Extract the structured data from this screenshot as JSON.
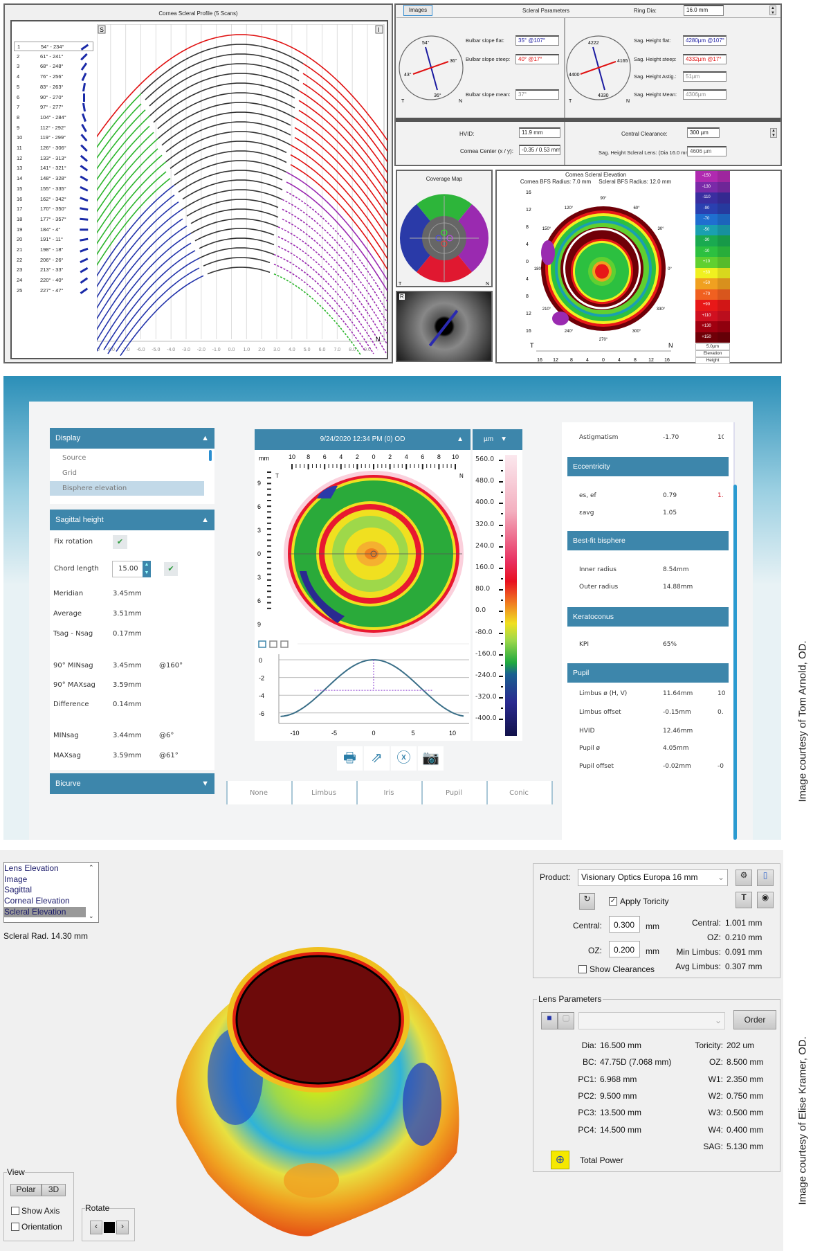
{
  "profile": {
    "title": "Cornea Scleral Profile (5 Scans)",
    "corner_left": "S",
    "corner_right": "I",
    "bottom_left": "T",
    "bottom_right": "N",
    "scans": [
      [
        "1",
        "54° - 234°"
      ],
      [
        "2",
        "61° - 241°"
      ],
      [
        "3",
        "68° - 248°"
      ],
      [
        "4",
        "76° - 256°"
      ],
      [
        "5",
        "83° - 263°"
      ],
      [
        "6",
        "90° - 270°"
      ],
      [
        "7",
        "97° - 277°"
      ],
      [
        "8",
        "104° - 284°"
      ],
      [
        "9",
        "112° - 292°"
      ],
      [
        "10",
        "119° - 299°"
      ],
      [
        "11",
        "126° - 306°"
      ],
      [
        "12",
        "133° - 313°"
      ],
      [
        "13",
        "141° - 321°"
      ],
      [
        "14",
        "148° - 328°"
      ],
      [
        "15",
        "155° - 335°"
      ],
      [
        "16",
        "162° - 342°"
      ],
      [
        "17",
        "170° - 350°"
      ],
      [
        "18",
        "177° - 357°"
      ],
      [
        "19",
        "184° - 4°"
      ],
      [
        "20",
        "191° - 11°"
      ],
      [
        "21",
        "198° - 18°"
      ],
      [
        "22",
        "206° - 26°"
      ],
      [
        "23",
        "213° - 33°"
      ],
      [
        "24",
        "220° - 40°"
      ],
      [
        "25",
        "227° - 47°"
      ]
    ],
    "x_ticks": [
      "-9.0",
      "-8.0",
      "-7.0",
      "-6.0",
      "-5.0",
      "-4.0",
      "-3.0",
      "-2.0",
      "-1.0",
      "0.0",
      "1.0",
      "2.0",
      "3.0",
      "4.0",
      "5.0",
      "6.0",
      "7.0",
      "8.0",
      "9.0"
    ]
  },
  "scleral": {
    "images_button": "Images",
    "title": "Scleral Parameters",
    "ring_dia_label": "Ring Dia:",
    "ring_dia_value": "16.0 mm",
    "left_compass": {
      "top": "54°",
      "right": "36°",
      "left": "43°",
      "bottom": "36°",
      "t": "T",
      "n": "N"
    },
    "right_compass": {
      "top": "4222",
      "right": "4165",
      "left": "4400",
      "bottom": "4330",
      "t": "T",
      "n": "N"
    },
    "bulbar": [
      {
        "label": "Bulbar slope flat:",
        "value": "35° @107°",
        "color": "#1a1aa0"
      },
      {
        "label": "Bulbar slope steep:",
        "value": "40° @17°",
        "color": "#e01010"
      },
      {
        "label": "Bulbar slope mean:",
        "value": "37°",
        "color": "#888"
      }
    ],
    "sag": [
      {
        "label": "Sag. Height flat:",
        "value": "4280µm @107°",
        "color": "#1a1aa0"
      },
      {
        "label": "Sag. Height steep:",
        "value": "4332µm @17°",
        "color": "#e01010"
      },
      {
        "label": "Sag. Height Astig.:",
        "value": "51µm",
        "color": "#888"
      },
      {
        "label": "Sag. Height Mean:",
        "value": "4306µm",
        "color": "#888"
      }
    ],
    "hvid_label": "HVID:",
    "hvid_value": "11.9 mm",
    "cornea_center_label": "Cornea Center (x / y):",
    "cornea_center_value": "-0.35 / 0.53 mm",
    "central_clearance_label": "Central Clearance:",
    "central_clearance_value": "300 µm",
    "sag_lens_label": "Sag. Height Scleral Lens: (Dia 16.0 mm)",
    "sag_lens_value": "4606 µm"
  },
  "coverage": {
    "title": "Coverage Map",
    "t": "T",
    "n": "N",
    "eye_label": "R"
  },
  "elevation": {
    "title": "Cornea Scleral Elevation",
    "subtitle": "Cornea BFS Radius: 7.0 mm     Scleral BFS Radius: 12.0 mm",
    "y_ticks": [
      "16",
      "12",
      "8",
      "4",
      "0",
      "4",
      "8",
      "12",
      "16"
    ],
    "x_ticks": [
      "16",
      "12",
      "8",
      "4",
      "0",
      "4",
      "8",
      "12",
      "16"
    ],
    "angles": [
      "90°",
      "120°",
      "60°",
      "150°",
      "30°",
      "180°",
      "0°",
      "210°",
      "330°",
      "240°",
      "300°",
      "270°"
    ],
    "t": "T",
    "n": "N",
    "scale": [
      "-150",
      "-130",
      "-110",
      "-90",
      "-70",
      "-50",
      "-30",
      "-10",
      "+10",
      "+30",
      "+50",
      "+70",
      "+90",
      "+110",
      "+130",
      "+150"
    ],
    "scale_colors": [
      "#b02ab0",
      "#7a2aa8",
      "#3a2ea0",
      "#2a40b0",
      "#1f6fd0",
      "#1aa0b0",
      "#1aaa50",
      "#2cc040",
      "#60d030",
      "#f0f020",
      "#f0a020",
      "#f06020",
      "#e81818",
      "#d01020",
      "#a00010",
      "#700008"
    ],
    "scale_foot": [
      "5.0µm",
      "Elevation",
      "Height"
    ]
  },
  "topo": {
    "display_header": "Display",
    "display_items": [
      "Source",
      "Grid",
      "Bisphere elevation"
    ],
    "display_selected": "Bisphere elevation",
    "sag_header": "Sagittal height",
    "fix_rotation": "Fix rotation",
    "chord_length": "Chord length",
    "chord_value": "15.00",
    "rows": [
      [
        "Meridian",
        "3.45mm",
        ""
      ],
      [
        "Average",
        "3.51mm",
        ""
      ],
      [
        "Tsag - Nsag",
        "0.17mm",
        ""
      ],
      [
        "90° MINsag",
        "3.45mm",
        "@160°"
      ],
      [
        "90° MAXsag",
        "3.59mm",
        ""
      ],
      [
        "Difference",
        "0.14mm",
        ""
      ],
      [
        "MINsag",
        "3.44mm",
        "@6°"
      ],
      [
        "MAXsag",
        "3.59mm",
        "@61°"
      ]
    ],
    "bicurve_header": "Bicurve",
    "map_header": "9/24/2020 12:34 PM (0) OD",
    "unit_header": "µm",
    "mm": "mm",
    "ruler": [
      "10",
      "8",
      "6",
      "4",
      "2",
      "0",
      "2",
      "4",
      "6",
      "8",
      "10"
    ],
    "left_ruler": [
      "9",
      "6",
      "3",
      "0",
      "3",
      "6",
      "9"
    ],
    "t": "T",
    "n": "N",
    "colorbar": [
      "560.0",
      "480.0",
      "400.0",
      "320.0",
      "240.0",
      "160.0",
      "80.0",
      "0.0",
      "-80.0",
      "-160.0",
      "-240.0",
      "-320.0",
      "-400.0"
    ],
    "profile_y": [
      "0",
      "-2",
      "-4",
      "-6"
    ],
    "profile_x": [
      "-10",
      "-5",
      "0",
      "5",
      "10"
    ],
    "tabs": [
      "None",
      "Limbus",
      "Iris",
      "Pupil",
      "Conic"
    ],
    "right": {
      "astig_label": "Astigmatism",
      "astig_value": "-1.70",
      "astig_extra": "10",
      "ecc_header": "Eccentricity",
      "ecc": [
        [
          "es, ef",
          "0.79",
          "1."
        ],
        [
          "εavg",
          "1.05",
          ""
        ]
      ],
      "bfb_header": "Best-fit bisphere",
      "bfb": [
        [
          "Inner radius",
          "8.54mm"
        ],
        [
          "Outer radius",
          "14.88mm"
        ]
      ],
      "kc_header": "Keratoconus",
      "kc": [
        [
          "KPI",
          "65%"
        ]
      ],
      "pupil_header": "Pupil",
      "pupil": [
        [
          "Limbus ø (H, V)",
          "11.64mm",
          "10"
        ],
        [
          "Limbus offset",
          "-0.15mm",
          "0."
        ],
        [
          "HVID",
          "12.46mm",
          ""
        ],
        [
          "Pupil ø",
          "4.05mm",
          ""
        ],
        [
          "Pupil offset",
          "-0.02mm",
          "-0"
        ]
      ]
    }
  },
  "lens": {
    "list": [
      "Lens Elevation",
      "Image",
      "Sagittal",
      "Corneal Elevation",
      "Scleral Elevation"
    ],
    "list_selected": "Scleral Elevation",
    "scleral_rad": "Scleral Rad. 14.30 mm",
    "view_label": "View",
    "polar": "Polar",
    "three_d": "3D",
    "show_axis": "Show Axis",
    "orientation": "Orientation",
    "rotate_label": "Rotate",
    "product_label": "Product:",
    "product_value": "Visionary Optics Europa 16 mm",
    "apply_toricity": "Apply Toricity",
    "central_label": "Central:",
    "central_value": "0.300",
    "oz_label": "OZ:",
    "oz_value": "0.200",
    "mm": "mm",
    "show_clearances": "Show Clearances",
    "readouts": [
      [
        "Central:",
        "1.001 mm"
      ],
      [
        "OZ:",
        "0.210 mm"
      ],
      [
        "Min Limbus:",
        "0.091 mm"
      ],
      [
        "Avg Limbus:",
        "0.307 mm"
      ]
    ],
    "params_title": "Lens Parameters",
    "order": "Order",
    "params_left": [
      [
        "Dia:",
        "16.500 mm"
      ],
      [
        "BC:",
        "47.75D (7.068 mm)"
      ],
      [
        "PC1:",
        "6.968 mm"
      ],
      [
        "PC2:",
        "9.500 mm"
      ],
      [
        "PC3:",
        "13.500 mm"
      ],
      [
        "PC4:",
        "14.500 mm"
      ]
    ],
    "params_right": [
      [
        "Toricity:",
        "202 um"
      ],
      [
        "OZ:",
        "8.500 mm"
      ],
      [
        "W1:",
        "2.350 mm"
      ],
      [
        "W2:",
        "0.750 mm"
      ],
      [
        "W3:",
        "0.500 mm"
      ],
      [
        "W4:",
        "0.400 mm"
      ],
      [
        "SAG:",
        "5.130 mm"
      ]
    ],
    "total_power": "Total Power"
  },
  "captions": [
    "Image courtesy of Tom Arnold, OD.",
    "Image courtesy of Elise Kramer, OD."
  ]
}
